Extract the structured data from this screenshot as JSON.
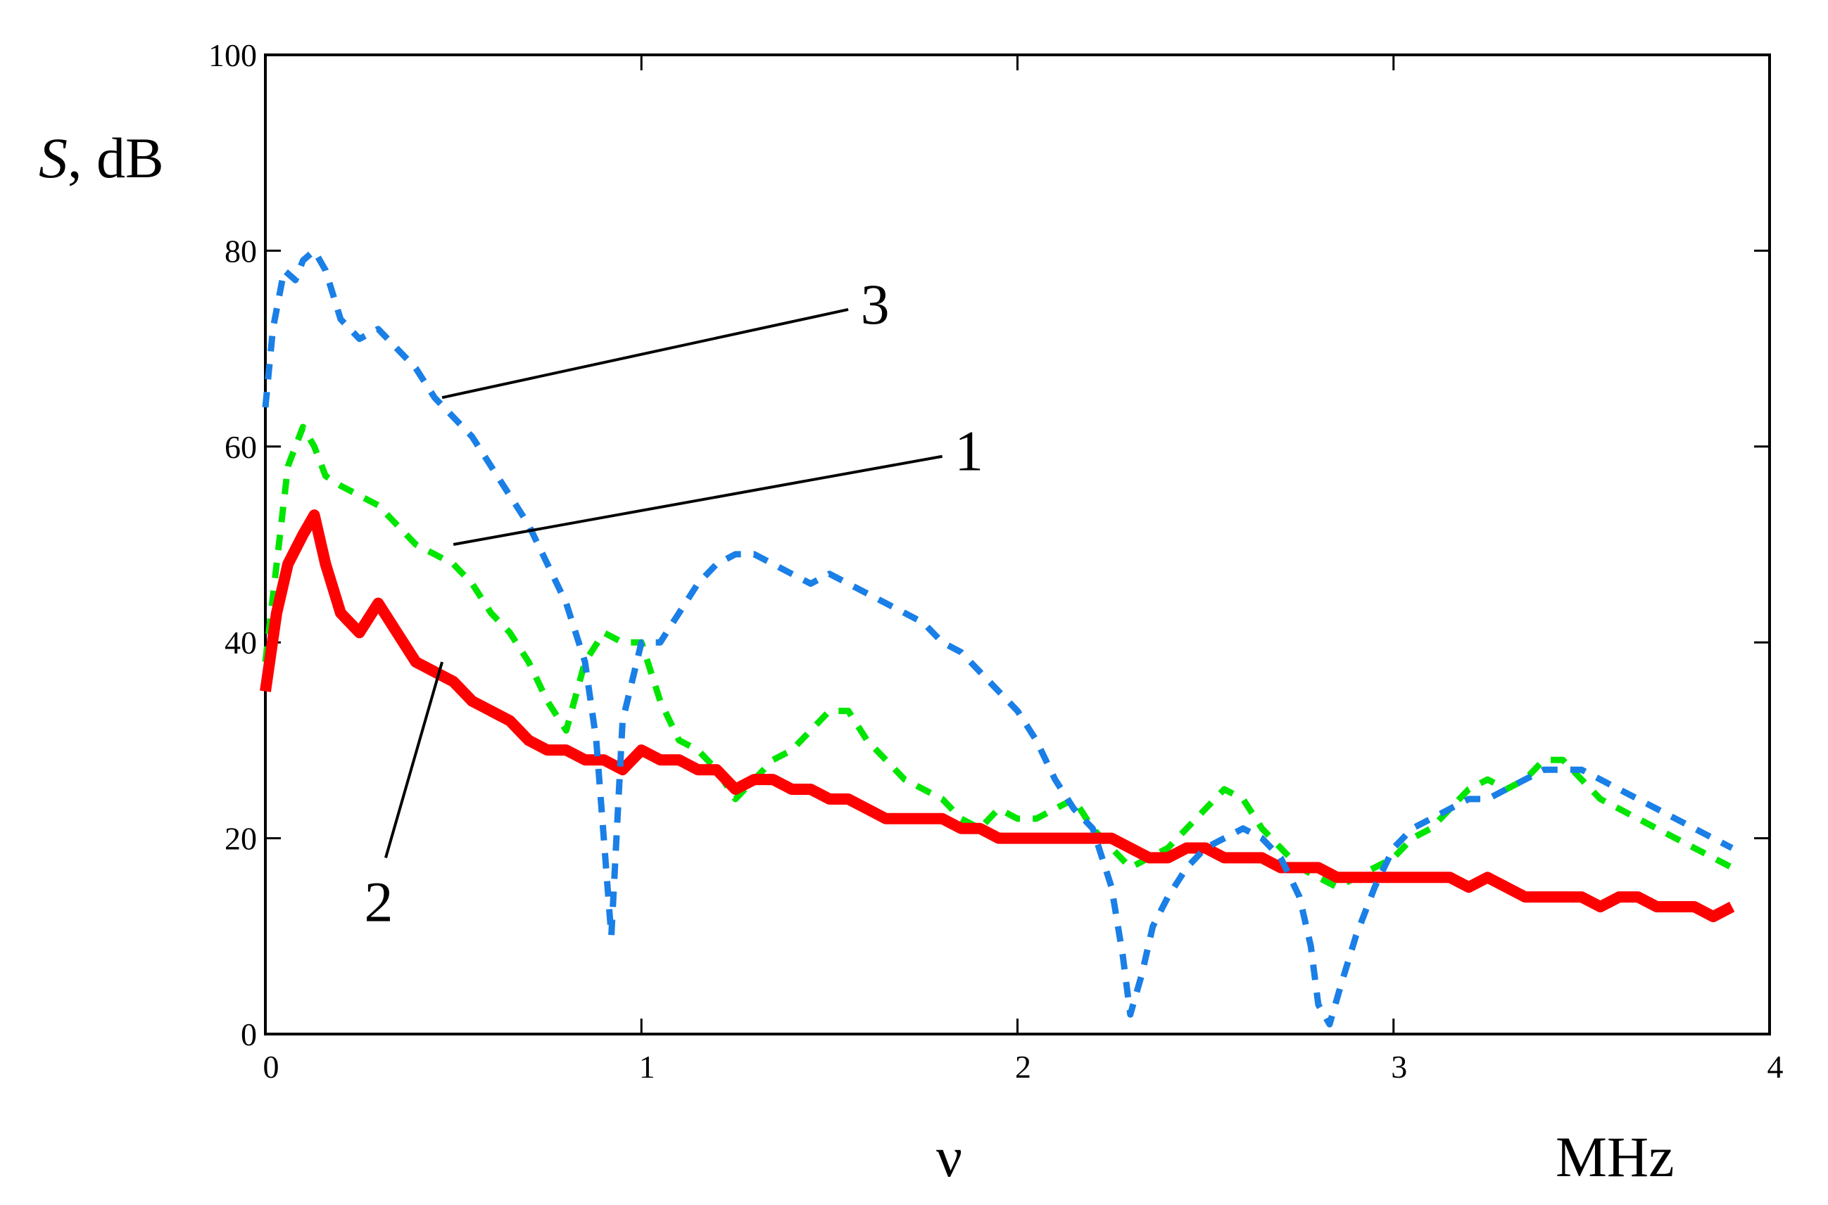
{
  "chart_data": {
    "type": "line",
    "title": "",
    "xlabel": "ν",
    "xunit": "MHz",
    "ylabel_symbol": "S",
    "ylabel_unit": ", dB",
    "xlim": [
      0,
      4
    ],
    "ylim": [
      0,
      100
    ],
    "xticks": [
      "0",
      "1",
      "2",
      "3",
      "4"
    ],
    "yticks": [
      "0",
      "20",
      "40",
      "60",
      "80",
      "100"
    ],
    "grid": false,
    "series": [
      {
        "name": "1",
        "color": "#00e600",
        "style": "dashed",
        "x": [
          0.0,
          0.03,
          0.06,
          0.1,
          0.13,
          0.16,
          0.2,
          0.25,
          0.3,
          0.35,
          0.4,
          0.45,
          0.5,
          0.55,
          0.6,
          0.65,
          0.7,
          0.75,
          0.8,
          0.85,
          0.9,
          0.95,
          1.0,
          1.05,
          1.1,
          1.15,
          1.2,
          1.25,
          1.3,
          1.35,
          1.4,
          1.45,
          1.5,
          1.55,
          1.6,
          1.65,
          1.7,
          1.75,
          1.8,
          1.85,
          1.9,
          1.95,
          2.0,
          2.05,
          2.1,
          2.15,
          2.2,
          2.25,
          2.3,
          2.35,
          2.4,
          2.45,
          2.5,
          2.55,
          2.6,
          2.65,
          2.7,
          2.75,
          2.8,
          2.85,
          2.9,
          2.95,
          3.0,
          3.05,
          3.1,
          3.15,
          3.2,
          3.25,
          3.3,
          3.35,
          3.4,
          3.45,
          3.5,
          3.55,
          3.6,
          3.65,
          3.7,
          3.75,
          3.8,
          3.85,
          3.9
        ],
        "y": [
          38,
          48,
          58,
          62,
          60,
          57,
          56,
          55,
          54,
          52,
          50,
          49,
          48,
          46,
          43,
          41,
          38,
          34,
          31,
          38,
          41,
          40,
          40,
          34,
          30,
          29,
          27,
          24,
          26,
          28,
          29,
          31,
          33,
          33,
          30,
          28,
          26,
          25,
          24,
          22,
          21,
          23,
          22,
          22,
          23,
          24,
          21,
          19,
          17,
          18,
          19,
          21,
          23,
          25,
          24,
          21,
          19,
          17,
          16,
          15,
          16,
          17,
          18,
          20,
          21,
          23,
          25,
          26,
          25,
          26,
          28,
          28,
          26,
          24,
          23,
          22,
          21,
          20,
          19,
          18,
          17
        ]
      },
      {
        "name": "2",
        "color": "#ff0000",
        "style": "solid",
        "x": [
          0.0,
          0.03,
          0.06,
          0.1,
          0.13,
          0.16,
          0.2,
          0.25,
          0.3,
          0.35,
          0.4,
          0.45,
          0.5,
          0.55,
          0.6,
          0.65,
          0.7,
          0.75,
          0.8,
          0.85,
          0.9,
          0.95,
          1.0,
          1.05,
          1.1,
          1.15,
          1.2,
          1.25,
          1.3,
          1.35,
          1.4,
          1.45,
          1.5,
          1.55,
          1.6,
          1.65,
          1.7,
          1.75,
          1.8,
          1.85,
          1.9,
          1.95,
          2.0,
          2.05,
          2.1,
          2.15,
          2.2,
          2.25,
          2.3,
          2.35,
          2.4,
          2.45,
          2.5,
          2.55,
          2.6,
          2.65,
          2.7,
          2.75,
          2.8,
          2.85,
          2.9,
          2.95,
          3.0,
          3.05,
          3.1,
          3.15,
          3.2,
          3.25,
          3.3,
          3.35,
          3.4,
          3.45,
          3.5,
          3.55,
          3.6,
          3.65,
          3.7,
          3.75,
          3.8,
          3.85,
          3.9
        ],
        "y": [
          35,
          43,
          48,
          51,
          53,
          48,
          43,
          41,
          44,
          41,
          38,
          37,
          36,
          34,
          33,
          32,
          30,
          29,
          29,
          28,
          28,
          27,
          29,
          28,
          28,
          27,
          27,
          25,
          26,
          26,
          25,
          25,
          24,
          24,
          23,
          22,
          22,
          22,
          22,
          21,
          21,
          20,
          20,
          20,
          20,
          20,
          20,
          20,
          19,
          18,
          18,
          19,
          19,
          18,
          18,
          18,
          17,
          17,
          17,
          16,
          16,
          16,
          16,
          16,
          16,
          16,
          15,
          16,
          15,
          14,
          14,
          14,
          14,
          13,
          14,
          14,
          13,
          13,
          13,
          12,
          13
        ]
      },
      {
        "name": "3",
        "color": "#1a7fe6",
        "style": "dashed",
        "x": [
          0.0,
          0.02,
          0.05,
          0.08,
          0.1,
          0.13,
          0.16,
          0.2,
          0.25,
          0.3,
          0.35,
          0.4,
          0.45,
          0.5,
          0.55,
          0.6,
          0.65,
          0.7,
          0.75,
          0.8,
          0.85,
          0.88,
          0.9,
          0.92,
          0.95,
          1.0,
          1.05,
          1.1,
          1.15,
          1.2,
          1.25,
          1.3,
          1.35,
          1.4,
          1.45,
          1.5,
          1.55,
          1.6,
          1.65,
          1.7,
          1.75,
          1.8,
          1.85,
          1.9,
          1.95,
          2.0,
          2.05,
          2.1,
          2.15,
          2.2,
          2.25,
          2.28,
          2.3,
          2.33,
          2.36,
          2.4,
          2.45,
          2.5,
          2.55,
          2.6,
          2.65,
          2.7,
          2.75,
          2.78,
          2.8,
          2.83,
          2.86,
          2.9,
          2.95,
          3.0,
          3.05,
          3.1,
          3.15,
          3.2,
          3.25,
          3.3,
          3.35,
          3.4,
          3.45,
          3.5,
          3.55,
          3.6,
          3.65,
          3.7,
          3.75,
          3.8,
          3.85,
          3.9
        ],
        "y": [
          64,
          72,
          78,
          77,
          79,
          80,
          78,
          73,
          71,
          72,
          70,
          68,
          65,
          63,
          61,
          58,
          55,
          52,
          48,
          44,
          38,
          30,
          20,
          10,
          32,
          40,
          40,
          43,
          46,
          48,
          49,
          49,
          48,
          47,
          46,
          47,
          46,
          45,
          44,
          43,
          42,
          40,
          39,
          37,
          35,
          33,
          30,
          26,
          23,
          21,
          15,
          8,
          2,
          6,
          11,
          14,
          17,
          19,
          20,
          21,
          20,
          18,
          14,
          9,
          3,
          1,
          5,
          10,
          15,
          19,
          21,
          22,
          23,
          24,
          24,
          25,
          26,
          27,
          27,
          27,
          26,
          25,
          24,
          23,
          22,
          21,
          20,
          19
        ]
      }
    ],
    "annotations": [
      {
        "label": "3",
        "target_series": "3",
        "point": [
          0.47,
          65
        ],
        "text_at": [
          1.55,
          74
        ]
      },
      {
        "label": "1",
        "target_series": "1",
        "point": [
          0.5,
          50
        ],
        "text_at": [
          1.8,
          59
        ]
      },
      {
        "label": "2",
        "target_series": "2",
        "point": [
          0.47,
          38
        ],
        "text_at": [
          0.32,
          18
        ]
      }
    ]
  }
}
